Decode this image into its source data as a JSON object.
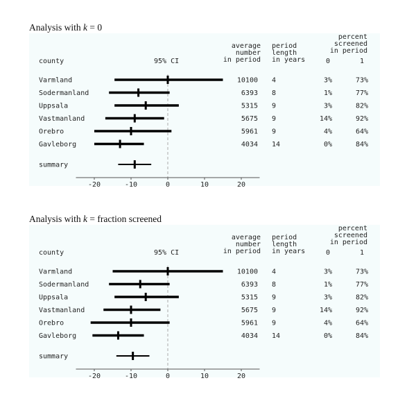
{
  "panels": [
    {
      "caption_pre": "Analysis with ",
      "caption_var": "k",
      "caption_post": " = 0",
      "header": {
        "county": "county",
        "ci": "95% CI",
        "avg_lines": [
          "average",
          "number",
          "in period"
        ],
        "len_lines": [
          "period",
          "length",
          "in years"
        ],
        "pct_lines": [
          "percent",
          "screened",
          "in period"
        ],
        "pct_sub0": "0",
        "pct_sub1": "1"
      },
      "summary_label": "summary"
    },
    {
      "caption_pre": "Analysis with ",
      "caption_var": "k",
      "caption_post": " = fraction screened",
      "header": {
        "county": "county",
        "ci": "95% CI",
        "avg_lines": [
          "average",
          "number",
          "in period"
        ],
        "len_lines": [
          "period",
          "length",
          "in years"
        ],
        "pct_lines": [
          "percent",
          "screened",
          "in period"
        ],
        "pct_sub0": "0",
        "pct_sub1": "1"
      },
      "summary_label": "summary"
    }
  ],
  "chart_data": [
    {
      "type": "forest",
      "xlim": [
        -25,
        25
      ],
      "x_ticks": [
        -20,
        -10,
        0,
        10,
        20
      ],
      "reference_line": 0,
      "rows": [
        {
          "county": "Varmland",
          "estimate": 0,
          "lower": -14.5,
          "upper": 15,
          "avg_number": 10100,
          "period_years": 4,
          "pct0": "3%",
          "pct1": "73%"
        },
        {
          "county": "Sodermanland",
          "estimate": -8,
          "lower": -16,
          "upper": 0.5,
          "avg_number": 6393,
          "period_years": 8,
          "pct0": "1%",
          "pct1": "77%"
        },
        {
          "county": "Uppsala",
          "estimate": -6,
          "lower": -14.5,
          "upper": 3,
          "avg_number": 5315,
          "period_years": 9,
          "pct0": "3%",
          "pct1": "82%"
        },
        {
          "county": "Vastmanland",
          "estimate": -9,
          "lower": -17,
          "upper": -1,
          "avg_number": 5675,
          "period_years": 9,
          "pct0": "14%",
          "pct1": "92%"
        },
        {
          "county": "Orebro",
          "estimate": -10,
          "lower": -20,
          "upper": 1,
          "avg_number": 5961,
          "period_years": 9,
          "pct0": "4%",
          "pct1": "64%"
        },
        {
          "county": "Gavleborg",
          "estimate": -13,
          "lower": -20,
          "upper": -6.5,
          "avg_number": 4034,
          "period_years": 14,
          "pct0": "0%",
          "pct1": "84%"
        }
      ],
      "summary": {
        "estimate": -9,
        "lower": -13.5,
        "upper": -4.5
      }
    },
    {
      "type": "forest",
      "xlim": [
        -25,
        25
      ],
      "x_ticks": [
        -20,
        -10,
        0,
        10,
        20
      ],
      "reference_line": 0,
      "rows": [
        {
          "county": "Varmland",
          "estimate": 0,
          "lower": -15,
          "upper": 15,
          "avg_number": 10100,
          "period_years": 4,
          "pct0": "3%",
          "pct1": "73%"
        },
        {
          "county": "Sodermanland",
          "estimate": -7.5,
          "lower": -16,
          "upper": 0.5,
          "avg_number": 6393,
          "period_years": 8,
          "pct0": "1%",
          "pct1": "77%"
        },
        {
          "county": "Uppsala",
          "estimate": -6,
          "lower": -14.5,
          "upper": 3,
          "avg_number": 5315,
          "period_years": 9,
          "pct0": "3%",
          "pct1": "82%"
        },
        {
          "county": "Vastmanland",
          "estimate": -10,
          "lower": -17.5,
          "upper": -2,
          "avg_number": 5675,
          "period_years": 9,
          "pct0": "14%",
          "pct1": "92%"
        },
        {
          "county": "Orebro",
          "estimate": -10,
          "lower": -21,
          "upper": 0.5,
          "avg_number": 5961,
          "period_years": 9,
          "pct0": "4%",
          "pct1": "64%"
        },
        {
          "county": "Gavleborg",
          "estimate": -13.5,
          "lower": -20.5,
          "upper": -6.5,
          "avg_number": 4034,
          "period_years": 14,
          "pct0": "0%",
          "pct1": "84%"
        }
      ],
      "summary": {
        "estimate": -9.5,
        "lower": -14,
        "upper": -5
      }
    }
  ]
}
